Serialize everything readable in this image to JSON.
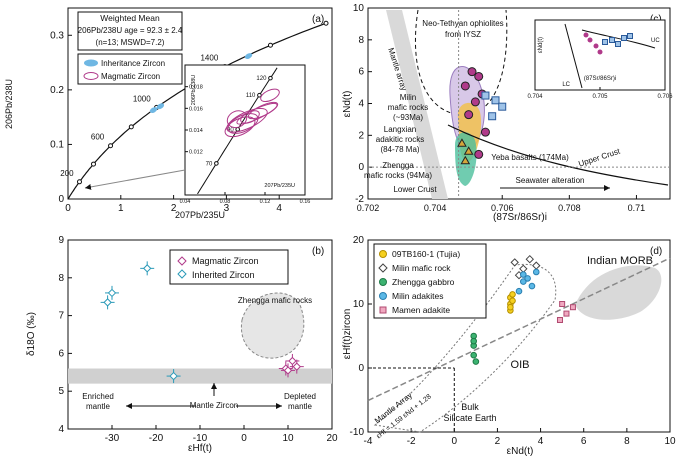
{
  "chart_data": [
    {
      "panel": "(a)",
      "type": "scatter",
      "title": "Weighted Mean",
      "annotation_lines": [
        "206Pb/238U age = 92.3 ± 2.4",
        "(n=13; MSWD=7.2)"
      ],
      "xlabel": "207Pb/235U",
      "ylabel": "206Pb/238U",
      "xlim": [
        0,
        5
      ],
      "ylim": [
        0,
        0.35
      ],
      "xticks": [
        0,
        1,
        2,
        3,
        4
      ],
      "yticks": [
        0,
        0.1,
        0.2,
        0.3
      ],
      "legend": [
        "Inheritance Zircon",
        "Magmatic Zircon"
      ],
      "concordia_ages": [
        {
          "label": "200",
          "x": 0.22,
          "y": 0.0315
        },
        {
          "label": "600",
          "x": 0.8,
          "y": 0.0976
        },
        {
          "label": "1000",
          "x": 1.68,
          "y": 0.168
        },
        {
          "label": "1400",
          "x": 2.96,
          "y": 0.2425
        }
      ],
      "inheritance_ellipses": [
        {
          "x": 1.62,
          "y": 0.163
        },
        {
          "x": 1.75,
          "y": 0.17
        },
        {
          "x": 3.42,
          "y": 0.262
        }
      ],
      "inset": {
        "xlabel": "207Pb/235U",
        "ylabel": "206Pb/238U",
        "xlim": [
          0.04,
          0.16
        ],
        "ylim": [
          0.008,
          0.02
        ],
        "xticks": [
          0.04,
          0.08,
          0.12,
          0.16
        ],
        "yticks": [
          0.012,
          0.014,
          0.016,
          0.018
        ],
        "ages": [
          "70",
          "90",
          "110",
          "120"
        ],
        "magmatic_ellipses": [
          {
            "x": 0.105,
            "y": 0.0152
          },
          {
            "x": 0.098,
            "y": 0.0146
          },
          {
            "x": 0.112,
            "y": 0.0155
          },
          {
            "x": 0.092,
            "y": 0.015
          },
          {
            "x": 0.118,
            "y": 0.0158
          },
          {
            "x": 0.102,
            "y": 0.0149
          },
          {
            "x": 0.125,
            "y": 0.0172
          },
          {
            "x": 0.095,
            "y": 0.0143
          }
        ]
      }
    },
    {
      "panel": "(b)",
      "type": "scatter",
      "xlabel": "εHf(t)",
      "ylabel": "δ18O (‰)",
      "xlim": [
        -40,
        20
      ],
      "ylim": [
        4,
        9
      ],
      "xticks": [
        -30,
        -20,
        -10,
        0,
        10,
        20
      ],
      "yticks": [
        4,
        5,
        6,
        7,
        8,
        9
      ],
      "legend": [
        "Magmatic Zircon",
        "Inherited Zircon"
      ],
      "series": [
        {
          "name": "Magmatic Zircon",
          "x": [
            9.5,
            11,
            12,
            10
          ],
          "y": [
            5.6,
            5.8,
            5.65,
            5.55
          ]
        },
        {
          "name": "Inherited Zircon",
          "x": [
            -31,
            -30,
            -22,
            -16
          ],
          "y": [
            7.35,
            7.6,
            8.25,
            5.4
          ]
        }
      ],
      "mantle_band": [
        5.2,
        5.6
      ],
      "labels": [
        "Zhengga mafic rocks",
        "Enriched mantle",
        "Mantle Zircon",
        "Depleted mantle"
      ]
    },
    {
      "panel": "(c)",
      "type": "scatter",
      "xlabel": "(87Sr/86Sr)i",
      "ylabel": "εNd(t)",
      "xlim": [
        0.702,
        0.711
      ],
      "ylim": [
        -2,
        10
      ],
      "xticks": [
        0.702,
        0.704,
        0.706,
        0.708,
        0.71
      ],
      "yticks": [
        -2,
        0,
        2,
        4,
        6,
        8,
        10
      ],
      "labels": [
        "Mantle array",
        "Neo-Tethyan ophiolites from IYSZ",
        "Milin mafic rocks (~93Ma)",
        "Langxian adakitic rocks (84-78 Ma)",
        "Zhengga mafic rocks (94Ma)",
        "Yeba basalts (174Ma)",
        "Upper Crust",
        "Lower Crust",
        "Seawater alteration"
      ],
      "series": [
        {
          "name": "Milin mafic rocks",
          "x": [
            0.7051,
            0.7053,
            0.7049,
            0.7054,
            0.7052,
            0.705,
            0.7055,
            0.7053
          ],
          "y": [
            6.0,
            5.7,
            5.1,
            4.6,
            4.1,
            3.3,
            2.2,
            0.8
          ]
        },
        {
          "name": "Yeba basalts",
          "x": [
            0.7055,
            0.7058,
            0.706,
            0.7057
          ],
          "y": [
            4.5,
            4.2,
            3.8,
            3.2
          ]
        },
        {
          "name": "Zhengga mafic rocks",
          "x": [
            0.7048,
            0.705,
            0.7049
          ],
          "y": [
            1.5,
            1.0,
            0.4
          ]
        }
      ],
      "inset": {
        "xlabel": "(87Sr/86Sr)i",
        "ylabel": "εNd(t)",
        "xlim": [
          0.704,
          0.706
        ],
        "xticks": [
          0.704,
          0.705,
          0.706
        ],
        "labels": [
          "UC",
          "LC"
        ]
      }
    },
    {
      "panel": "(d)",
      "type": "scatter",
      "xlabel": "εNd(t)",
      "ylabel": "εHf(t)zircon",
      "xlim": [
        -4,
        10
      ],
      "ylim": [
        -10,
        20
      ],
      "xticks": [
        -4,
        -2,
        0,
        2,
        4,
        6,
        8,
        10
      ],
      "yticks": [
        -10,
        0,
        10,
        20
      ],
      "legend": [
        "09TB160-1 (Tujia)",
        "Milin mafic rock",
        "Zhengga gabbro",
        "Milin adakites",
        "Mamen adakite"
      ],
      "labels": [
        "Indian MORB",
        "OIB",
        "Mantle Array",
        "Bulk Silicate Earth"
      ],
      "mantle_array_equation": "εHf = 1.59 εNd + 1.28",
      "series": [
        {
          "name": "09TB160-1 (Tujia)",
          "x": [
            2.6,
            2.6,
            2.6,
            2.7,
            2.7,
            2.6
          ],
          "y": [
            9.0,
            10.0,
            11.0,
            11.5,
            10.5,
            9.5
          ]
        },
        {
          "name": "Milin mafic rock",
          "x": [
            2.8,
            3.2,
            3.5,
            3.8,
            3.0
          ],
          "y": [
            16.5,
            15.5,
            17.0,
            16.0,
            14.5
          ]
        },
        {
          "name": "Zhengga gabbro",
          "x": [
            0.9,
            0.9,
            0.9,
            1.0,
            0.9
          ],
          "y": [
            2.0,
            3.5,
            5.0,
            1.0,
            4.2
          ]
        },
        {
          "name": "Milin adakites",
          "x": [
            3.0,
            3.2,
            3.4,
            3.6,
            3.8,
            3.2
          ],
          "y": [
            12.0,
            13.5,
            14.0,
            12.8,
            15.0,
            14.6
          ]
        },
        {
          "name": "Mamen adakite",
          "x": [
            4.9,
            5.2,
            5.5,
            5.0
          ],
          "y": [
            7.5,
            8.5,
            9.5,
            10.0
          ]
        }
      ]
    }
  ]
}
